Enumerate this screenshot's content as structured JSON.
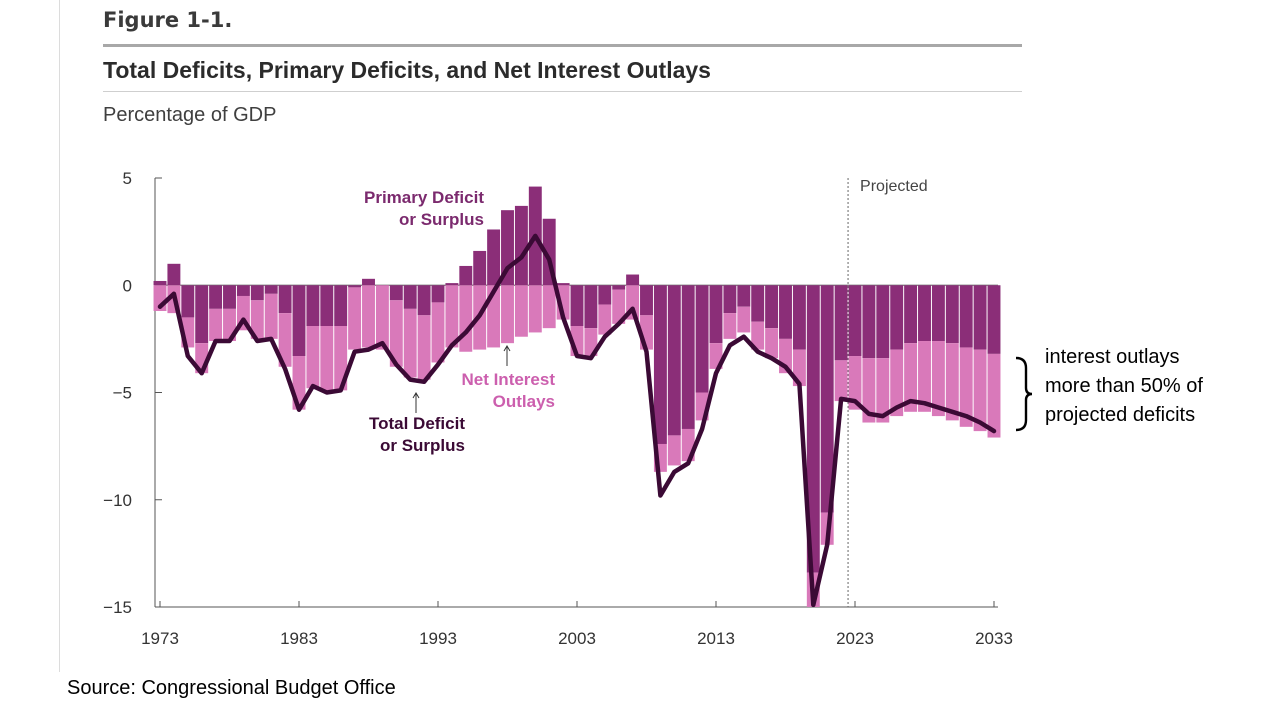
{
  "figure_label": "Figure 1-1.",
  "title": "Total Deficits, Primary Deficits, and Net Interest Outlays",
  "subtitle": "Percentage of GDP",
  "projected_label": "Projected",
  "annotations": {
    "primary": [
      "Primary Deficit",
      "or Surplus"
    ],
    "interest": [
      "Net Interest",
      "Outlays"
    ],
    "total": [
      "Total Deficit",
      "or Surplus"
    ]
  },
  "side_note": [
    "interest outlays",
    "more than 50% of",
    "projected deficits"
  ],
  "source": "Source: Congressional Budget Office",
  "colors": {
    "primary": "#8b2e78",
    "interest": "#d979ba",
    "total_line": "#3b0a35",
    "primary_label": "#7b2a6e",
    "interest_label": "#cc5fae"
  },
  "chart_data": {
    "type": "bar",
    "xlim": [
      1973,
      2033
    ],
    "ylim": [
      -15,
      5
    ],
    "y_ticks": [
      5,
      0,
      -5,
      -10,
      -15
    ],
    "x_ticks": [
      1973,
      1983,
      1993,
      2003,
      2013,
      2023,
      2033
    ],
    "projection_start": 2023,
    "categories": [
      1973,
      1974,
      1975,
      1976,
      1977,
      1978,
      1979,
      1980,
      1981,
      1982,
      1983,
      1984,
      1985,
      1986,
      1987,
      1988,
      1989,
      1990,
      1991,
      1992,
      1993,
      1994,
      1995,
      1996,
      1997,
      1998,
      1999,
      2000,
      2001,
      2002,
      2003,
      2004,
      2005,
      2006,
      2007,
      2008,
      2009,
      2010,
      2011,
      2012,
      2013,
      2014,
      2015,
      2016,
      2017,
      2018,
      2019,
      2020,
      2021,
      2022,
      2023,
      2024,
      2025,
      2026,
      2027,
      2028,
      2029,
      2030,
      2031,
      2032,
      2033
    ],
    "series": [
      {
        "name": "Primary Deficit or Surplus",
        "values": [
          0.2,
          1.0,
          -1.5,
          -2.7,
          -1.1,
          -1.1,
          -0.5,
          -0.7,
          -0.4,
          -1.3,
          -3.3,
          -1.9,
          -1.9,
          -1.9,
          -0.1,
          0.3,
          0.0,
          -0.7,
          -1.1,
          -1.4,
          -0.8,
          0.1,
          0.9,
          1.6,
          2.6,
          3.5,
          3.7,
          4.6,
          3.1,
          0.1,
          -1.9,
          -2.0,
          -0.9,
          -0.2,
          0.5,
          -1.4,
          -7.4,
          -7.0,
          -6.7,
          -5.0,
          -2.7,
          -1.3,
          -1.0,
          -1.7,
          -2.0,
          -2.5,
          -3.0,
          -13.4,
          -10.6,
          -3.5,
          -3.3,
          -3.4,
          -3.4,
          -3.0,
          -2.7,
          -2.6,
          -2.6,
          -2.7,
          -2.9,
          -3.0,
          -3.2
        ]
      },
      {
        "name": "Net Interest Outlays",
        "values": [
          1.2,
          1.3,
          1.4,
          1.4,
          1.5,
          1.5,
          1.6,
          1.8,
          2.1,
          2.5,
          2.5,
          2.9,
          3.0,
          3.0,
          2.9,
          2.9,
          3.0,
          3.1,
          3.2,
          3.0,
          2.8,
          2.9,
          3.1,
          3.0,
          2.9,
          2.7,
          2.4,
          2.2,
          2.0,
          1.6,
          1.4,
          1.3,
          1.4,
          1.6,
          1.6,
          1.6,
          1.3,
          1.4,
          1.5,
          1.3,
          1.2,
          1.2,
          1.2,
          1.3,
          1.4,
          1.6,
          1.7,
          1.6,
          1.5,
          1.9,
          2.5,
          3.0,
          3.0,
          3.1,
          3.2,
          3.3,
          3.5,
          3.6,
          3.7,
          3.8,
          3.9
        ]
      },
      {
        "name": "Total Deficit or Surplus",
        "values": [
          -1.0,
          -0.4,
          -3.3,
          -4.1,
          -2.6,
          -2.6,
          -1.6,
          -2.6,
          -2.5,
          -3.9,
          -5.8,
          -4.7,
          -5.0,
          -4.9,
          -3.1,
          -3.0,
          -2.7,
          -3.7,
          -4.4,
          -4.5,
          -3.7,
          -2.8,
          -2.2,
          -1.4,
          -0.3,
          0.8,
          1.3,
          2.3,
          1.2,
          -1.5,
          -3.3,
          -3.4,
          -2.4,
          -1.8,
          -1.1,
          -3.1,
          -9.8,
          -8.7,
          -8.3,
          -6.7,
          -4.1,
          -2.8,
          -2.4,
          -3.1,
          -3.4,
          -3.8,
          -4.6,
          -14.9,
          -12.1,
          -5.3,
          -5.4,
          -6.0,
          -6.1,
          -5.7,
          -5.4,
          -5.5,
          -5.7,
          -5.9,
          -6.1,
          -6.4,
          -6.8
        ]
      }
    ]
  }
}
